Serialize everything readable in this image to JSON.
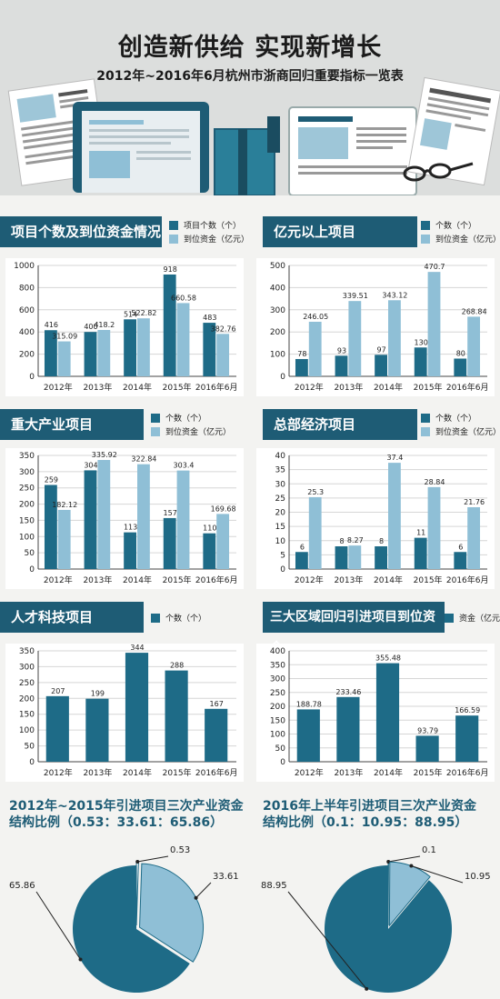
{
  "header": {
    "title": "创造新供给  实现新增长",
    "subtitle": "2012年~2016年6月杭州市浙商回归重要指标一览表"
  },
  "colors": {
    "dark": "#1e6b87",
    "light": "#8fbfd6",
    "title_bar": "#1e5c75",
    "page": "#f3f3f1"
  },
  "charts": [
    {
      "title": "项目个数及到位资金情况",
      "legend": [
        "项目个数（个）",
        "到位资金（亿元）"
      ]
    },
    {
      "title": "亿元以上项目",
      "legend": [
        "个数（个）",
        "到位资金（亿元）"
      ]
    },
    {
      "title": "重大产业项目",
      "legend": [
        "个数（个）",
        "到位资金（亿元）"
      ]
    },
    {
      "title": "总部经济项目",
      "legend": [
        "个数（个）",
        "到位资金（亿元）"
      ]
    },
    {
      "title": "人才科技项目",
      "legend": [
        "个数（个）"
      ]
    },
    {
      "title": "三大区域回归引进项目到位资金",
      "legend": [
        "资金（亿元）"
      ]
    },
    {
      "title": "2012年~2015年引进项目三次产业资金\n结构比例（0.53：33.61：65.86）"
    },
    {
      "title": "2016年上半年引进项目三次产业资金\n结构比例（0.1：10.95：88.95）"
    }
  ],
  "chart_data": [
    {
      "type": "bar",
      "title": "项目个数及到位资金情况",
      "categories": [
        "2012年",
        "2013年",
        "2014年",
        "2015年",
        "2016年6月"
      ],
      "ylim": [
        0,
        1000
      ],
      "yticks": [
        0,
        200,
        400,
        600,
        800,
        1000
      ],
      "series": [
        {
          "name": "项目个数（个）",
          "values": [
            416,
            400,
            514,
            918,
            483
          ],
          "labels": [
            "416",
            "400",
            "514",
            "918",
            "483"
          ]
        },
        {
          "name": "到位资金（亿元）",
          "values": [
            315.09,
            418.2,
            522.82,
            660.58,
            382.76
          ],
          "labels": [
            "315.09",
            "418.2",
            "522.82",
            "660.58",
            "382.76"
          ]
        }
      ]
    },
    {
      "type": "bar",
      "title": "亿元以上项目",
      "categories": [
        "2012年",
        "2013年",
        "2014年",
        "2015年",
        "2016年6月"
      ],
      "ylim": [
        0,
        500
      ],
      "yticks": [
        0,
        100,
        200,
        300,
        400,
        500
      ],
      "series": [
        {
          "name": "个数（个）",
          "values": [
            78,
            93,
            97,
            130,
            80
          ],
          "labels": [
            "78",
            "93",
            "97",
            "130",
            "80"
          ]
        },
        {
          "name": "到位资金（亿元）",
          "values": [
            246.05,
            339.51,
            343.12,
            470.7,
            268.84
          ],
          "labels": [
            "246.05",
            "339.51",
            "343.12",
            "470.7",
            "268.84"
          ]
        }
      ]
    },
    {
      "type": "bar",
      "title": "重大产业项目",
      "categories": [
        "2012年",
        "2013年",
        "2014年",
        "2015年",
        "2016年6月"
      ],
      "ylim": [
        0,
        350
      ],
      "yticks": [
        0,
        50,
        100,
        150,
        200,
        250,
        300,
        350
      ],
      "series": [
        {
          "name": "个数（个）",
          "values": [
            259,
            304,
            113,
            157,
            110
          ],
          "labels": [
            "259",
            "304",
            "113",
            "157",
            "110"
          ]
        },
        {
          "name": "到位资金（亿元）",
          "values": [
            182.12,
            335.92,
            322.84,
            303.4,
            169.68
          ],
          "labels": [
            "182.12",
            "335.92",
            "322.84",
            "303.4",
            "169.68"
          ]
        }
      ]
    },
    {
      "type": "bar",
      "title": "总部经济项目",
      "categories": [
        "2012年",
        "2013年",
        "2014年",
        "2015年",
        "2016年6月"
      ],
      "ylim": [
        0,
        40
      ],
      "yticks": [
        0,
        5,
        10,
        15,
        20,
        25,
        30,
        35,
        40
      ],
      "series": [
        {
          "name": "个数（个）",
          "values": [
            6,
            8,
            8,
            11,
            6
          ],
          "labels": [
            "6",
            "8",
            "8",
            "11",
            "6"
          ]
        },
        {
          "name": "到位资金（亿元）",
          "values": [
            25.3,
            8.27,
            37.4,
            28.84,
            21.76
          ],
          "labels": [
            "25.3",
            "8.27",
            "37.4",
            "28.84",
            "21.76"
          ]
        }
      ]
    },
    {
      "type": "bar",
      "title": "人才科技项目",
      "categories": [
        "2012年",
        "2013年",
        "2014年",
        "2015年",
        "2016年6月"
      ],
      "ylim": [
        0,
        350
      ],
      "yticks": [
        0,
        50,
        100,
        150,
        200,
        250,
        300,
        350
      ],
      "series": [
        {
          "name": "个数（个）",
          "values": [
            207,
            199,
            344,
            288,
            167
          ],
          "labels": [
            "207",
            "199",
            "344",
            "288",
            "167"
          ]
        }
      ]
    },
    {
      "type": "bar",
      "title": "三大区域回归引进项目到位资金",
      "categories": [
        "2012年",
        "2013年",
        "2014年",
        "2015年",
        "2016年6月"
      ],
      "ylim": [
        0,
        400
      ],
      "yticks": [
        0,
        50,
        100,
        150,
        200,
        250,
        300,
        350,
        400
      ],
      "series": [
        {
          "name": "资金（亿元）",
          "values": [
            188.78,
            233.46,
            355.48,
            93.79,
            166.59
          ],
          "labels": [
            "188.78",
            "233.46",
            "355.48",
            "93.79",
            "166.59"
          ]
        }
      ]
    },
    {
      "type": "pie",
      "title": "2012年~2015年引进项目三次产业资金结构比例（0.53：33.61：65.86）",
      "slices": [
        {
          "label": "0.53",
          "value": 0.53
        },
        {
          "label": "33.61",
          "value": 33.61
        },
        {
          "label": "65.86",
          "value": 65.86
        }
      ]
    },
    {
      "type": "pie",
      "title": "2016年上半年引进项目三次产业资金结构比例（0.1：10.95：88.95）",
      "slices": [
        {
          "label": "0.1",
          "value": 0.1
        },
        {
          "label": "10.95",
          "value": 10.95
        },
        {
          "label": "88.95",
          "value": 88.95
        }
      ]
    }
  ]
}
